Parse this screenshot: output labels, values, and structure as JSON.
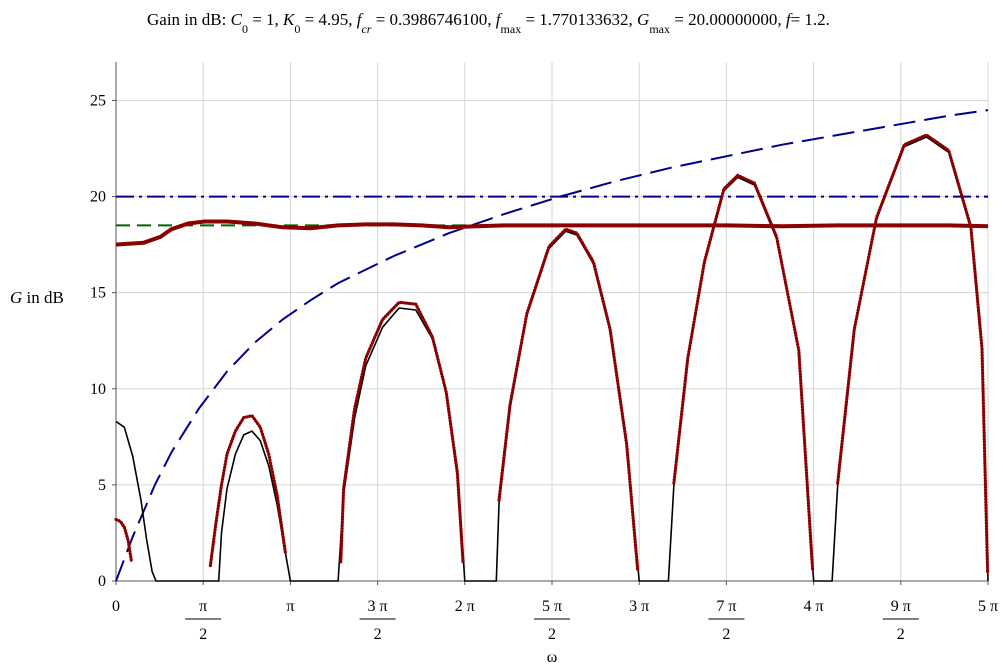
{
  "chart_data": {
    "type": "line",
    "title_parts": {
      "prefix": "Gain in dB: ",
      "C": "C",
      "C_sub": "0",
      "C_val": " = 1, ",
      "K": "K",
      "K_sub": "0",
      "K_val": " = 4.95, ",
      "fcr": "f",
      "fcr_sub": "cr",
      "fcr_val": " = 0.3986746100, ",
      "fmax": "f",
      "fmax_sub": "max",
      "fmax_val": " = 1.770133632, ",
      "Gmax": "G",
      "Gmax_sub": "max",
      "Gmax_val": " = 20.00000000, ",
      "f": "f",
      "f_val": "= 1.2."
    },
    "ylabel_var": "G",
    "ylabel_rest": " in dB",
    "xlabel": "ω",
    "xlim": [
      0,
      15.707963
    ],
    "ylim": [
      0,
      27
    ],
    "grid": true,
    "y_ticks": [
      0,
      5,
      10,
      15,
      20,
      25
    ],
    "y_tick_labels": [
      "0",
      "5",
      "10",
      "15",
      "20",
      "25"
    ],
    "x_ticks": [
      {
        "value": 0,
        "num": "0",
        "den": ""
      },
      {
        "value": 1.5707963,
        "num": "π",
        "den": "2"
      },
      {
        "value": 3.1415927,
        "num": "π",
        "den": ""
      },
      {
        "value": 4.712389,
        "num": "3 π",
        "den": "2"
      },
      {
        "value": 6.2831853,
        "num": "2 π",
        "den": ""
      },
      {
        "value": 7.8539816,
        "num": "5 π",
        "den": "2"
      },
      {
        "value": 9.424778,
        "num": "3 π",
        "den": ""
      },
      {
        "value": 10.995574,
        "num": "7 π",
        "den": "2"
      },
      {
        "value": 12.566371,
        "num": "4 π",
        "den": ""
      },
      {
        "value": 14.137167,
        "num": "9 π",
        "den": "2"
      },
      {
        "value": 15.707963,
        "num": "5 π",
        "den": ""
      }
    ],
    "series": [
      {
        "style": "dashed",
        "color": "#00008b",
        "x": [
          0,
          0.3,
          0.7,
          1.0,
          1.5,
          2.0,
          2.5,
          3.0,
          3.5,
          4.0,
          5.0,
          6.0,
          7.0,
          8.0,
          9.0,
          10.0,
          11.0,
          12.0,
          13.0,
          14.0,
          15.0,
          15.708
        ],
        "y": [
          0,
          2.3,
          5.0,
          6.7,
          9.0,
          10.9,
          12.4,
          13.6,
          14.6,
          15.5,
          16.9,
          18.1,
          19.1,
          20.0,
          20.8,
          21.5,
          22.1,
          22.7,
          23.2,
          23.7,
          24.2,
          24.5
        ]
      },
      {
        "style": "dashdot",
        "color": "#00008b",
        "x": [
          0,
          15.708
        ],
        "y": [
          20,
          20
        ]
      },
      {
        "style": "dashed",
        "color": "#006400",
        "x": [
          0,
          15.708
        ],
        "y": [
          18.5,
          18.5
        ]
      },
      {
        "style": "solid",
        "color": "#8b0000",
        "x": [
          0,
          0.5,
          0.8,
          1.0,
          1.3,
          1.6,
          2.0,
          2.5,
          3.0,
          3.5,
          4.0,
          4.5,
          5.0,
          5.5,
          6.0,
          6.5,
          7.0,
          8.0,
          9.0,
          10.0,
          11.0,
          12.0,
          13.0,
          14.0,
          15.0,
          15.708
        ],
        "y": [
          17.5,
          17.6,
          17.9,
          18.3,
          18.6,
          18.7,
          18.7,
          18.6,
          18.4,
          18.35,
          18.5,
          18.55,
          18.55,
          18.5,
          18.4,
          18.45,
          18.5,
          18.5,
          18.5,
          18.5,
          18.5,
          18.45,
          18.5,
          18.5,
          18.5,
          18.45
        ]
      },
      {
        "style": "solid",
        "color": "#000000",
        "x": [
          0,
          0.15,
          0.3,
          0.45,
          0.55,
          0.65,
          0.72,
          1.85,
          1.9,
          2.0,
          2.15,
          2.3,
          2.45,
          2.6,
          2.75,
          2.9,
          3.05,
          3.1416,
          4.0,
          4.1,
          4.3,
          4.5,
          4.8,
          5.1,
          5.4,
          5.7,
          5.95,
          6.15,
          6.2832,
          6.85,
          6.9,
          7.1,
          7.4,
          7.8,
          8.1,
          8.3,
          8.6,
          8.9,
          9.2,
          9.4248,
          9.95,
          10.05,
          10.3,
          10.6,
          10.95,
          11.2,
          11.5,
          11.9,
          12.3,
          12.5664,
          12.9,
          13.0,
          13.3,
          13.7,
          14.2,
          14.6,
          15.0,
          15.4,
          15.6,
          15.708
        ],
        "y": [
          8.3,
          8.0,
          6.5,
          4.2,
          2.2,
          0.5,
          0,
          0,
          2.5,
          4.8,
          6.6,
          7.6,
          7.8,
          7.3,
          6.0,
          4.0,
          1.5,
          0,
          0,
          4.5,
          8.5,
          11.2,
          13.2,
          14.2,
          14.1,
          12.6,
          9.8,
          5.8,
          0,
          0,
          4.0,
          9.0,
          13.8,
          17.3,
          18.2,
          18.0,
          16.5,
          13.0,
          7.0,
          0,
          0,
          5.0,
          11.5,
          16.5,
          20.3,
          21.0,
          20.6,
          17.8,
          12.0,
          0,
          0,
          5.0,
          13.0,
          18.8,
          22.6,
          23.1,
          22.3,
          18.3,
          12.0,
          0
        ]
      },
      {
        "style": "dotted",
        "color": "#8b0000",
        "segments": [
          {
            "x": [
              0,
              0.08,
              0.15,
              0.22,
              0.28
            ],
            "y": [
              3.2,
              3.1,
              2.8,
              2.1,
              1.0
            ]
          },
          {
            "x": [
              1.7,
              1.8,
              1.9,
              2.0,
              2.15,
              2.3,
              2.45,
              2.6,
              2.75,
              2.9,
              3.05
            ],
            "y": [
              0.8,
              3.0,
              5.0,
              6.6,
              7.8,
              8.5,
              8.6,
              8.0,
              6.6,
              4.5,
              1.5
            ]
          },
          {
            "x": [
              4.05,
              4.1,
              4.3,
              4.5,
              4.8,
              5.1,
              5.4,
              5.7,
              5.95,
              6.15,
              6.25
            ],
            "y": [
              1.0,
              4.8,
              9.0,
              11.6,
              13.6,
              14.5,
              14.4,
              12.7,
              9.8,
              5.6,
              1.0
            ]
          },
          {
            "x": [
              6.9,
              7.1,
              7.4,
              7.8,
              8.1,
              8.3,
              8.6,
              8.9,
              9.2,
              9.4
            ],
            "y": [
              4.2,
              9.2,
              13.9,
              17.4,
              18.3,
              18.1,
              16.6,
              13.1,
              7.1,
              0.5
            ]
          },
          {
            "x": [
              10.05,
              10.3,
              10.6,
              10.95,
              11.2,
              11.5,
              11.9,
              12.3,
              12.55
            ],
            "y": [
              5.1,
              11.6,
              16.6,
              20.4,
              21.1,
              20.7,
              17.9,
              12.0,
              0.5
            ]
          },
          {
            "x": [
              13.0,
              13.3,
              13.7,
              14.2,
              14.6,
              15.0,
              15.4,
              15.6,
              15.7
            ],
            "y": [
              5.1,
              13.1,
              18.9,
              22.7,
              23.2,
              22.4,
              18.4,
              12.1,
              0.5
            ]
          }
        ]
      }
    ]
  }
}
